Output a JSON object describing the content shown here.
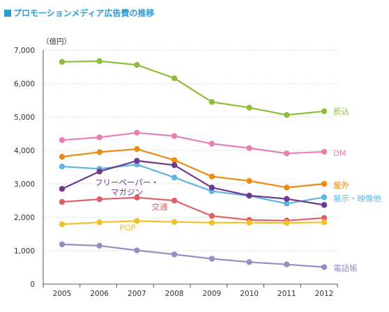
{
  "chart_data": {
    "type": "line",
    "title": "プロモーションメディア広告費の推移",
    "ylabel": "（億円）",
    "xlabel": "",
    "x": [
      "2005",
      "2006",
      "2007",
      "2008",
      "2009",
      "2010",
      "2011",
      "2012"
    ],
    "ylim": [
      0,
      7000
    ],
    "yticks": [
      "0",
      "1,000",
      "2,000",
      "3,000",
      "4,000",
      "5,000",
      "6,000",
      "7,000"
    ],
    "ytick_values": [
      0,
      1000,
      2000,
      3000,
      4000,
      5000,
      6000,
      7000
    ],
    "grid": "horizontal-dotted",
    "accent_color": "#2b9bd6",
    "series": [
      {
        "name": "折込",
        "color": "#8dbd3c",
        "values": [
          6650,
          6670,
          6560,
          6160,
          5450,
          5280,
          5060,
          5170
        ]
      },
      {
        "name": "DM",
        "color": "#e681b4",
        "values": [
          4310,
          4390,
          4530,
          4430,
          4200,
          4070,
          3910,
          3960
        ]
      },
      {
        "name": "屋外",
        "color": "#ea8c14",
        "values": [
          3810,
          3950,
          4040,
          3710,
          3220,
          3090,
          2890,
          3000
        ]
      },
      {
        "name": "展示・映像他",
        "color": "#5eb5e4",
        "values": [
          3520,
          3450,
          3580,
          3190,
          2780,
          2640,
          2410,
          2600
        ]
      },
      {
        "name": "フリーペーパー・マガジン",
        "color": "#6e3a8e",
        "values": [
          2850,
          3370,
          3690,
          3560,
          2890,
          2650,
          2550,
          2370
        ]
      },
      {
        "name": "交通",
        "color": "#e05f66",
        "values": [
          2460,
          2540,
          2590,
          2500,
          2040,
          1920,
          1900,
          1980
        ]
      },
      {
        "name": "POP",
        "color": "#f2c02a",
        "values": [
          1790,
          1850,
          1890,
          1860,
          1840,
          1840,
          1830,
          1850
        ]
      },
      {
        "name": "電話帳",
        "color": "#9a8cc4",
        "values": [
          1190,
          1150,
          1010,
          890,
          760,
          660,
          590,
          510
        ]
      }
    ]
  }
}
